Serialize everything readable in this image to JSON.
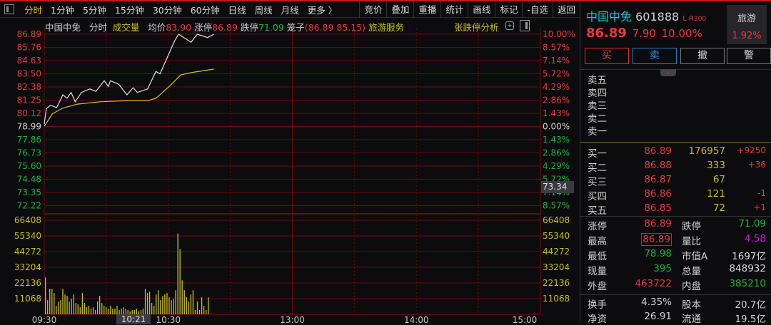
{
  "toolbar": {
    "periods": [
      "分时",
      "1分钟",
      "5分钟",
      "15分钟",
      "30分钟",
      "60分钟",
      "日线",
      "周线",
      "月线",
      "更多 〉"
    ],
    "active": "分时",
    "actions": [
      "竞价",
      "叠加",
      "重播",
      "统计",
      "画线",
      "标记",
      "-自选",
      "返回"
    ]
  },
  "header": {
    "name": "中国中免",
    "mode": "分时",
    "indicator": "成交量",
    "avg_label": "均价",
    "avg": "83.90",
    "up_limit_label": "涨停",
    "up_limit": "86.89",
    "down_limit_label": "跌停",
    "down_limit": "71.09",
    "cage_label": "笼子",
    "cage": "(86.89 85.15)",
    "sector": "旅游服务",
    "analysis": "张跌停分析"
  },
  "cursor": {
    "price": "73.34",
    "time": "10:21"
  },
  "chart_data": {
    "type": "line",
    "price_ticks": [
      "86.89",
      "85.76",
      "84.63",
      "83.50",
      "82.38",
      "81.25",
      "80.12",
      "78.99",
      "77.86",
      "76.73",
      "75.60",
      "74.48",
      "73.35",
      "72.22"
    ],
    "pct_ticks": [
      "10.00%",
      "8.57%",
      "7.14%",
      "5.72%",
      "4.29%",
      "2.86%",
      "1.43%",
      "0.00%",
      "1.43%",
      "2.86%",
      "4.29%",
      "5.72%",
      "7.14%",
      "8.57%"
    ],
    "volume_ticks": [
      "66408",
      "55340",
      "44272",
      "33204",
      "22136",
      "11068"
    ],
    "time_ticks": [
      "09:30",
      "10:30",
      "13:00",
      "14:00",
      "15:00"
    ],
    "ylim": [
      72.22,
      86.89
    ],
    "volume_max": 66408,
    "price_series": [
      [
        "09:30",
        79.2
      ],
      [
        "09:31",
        80.5
      ],
      [
        "09:33",
        80.8
      ],
      [
        "09:36",
        80.6
      ],
      [
        "09:39",
        81.7
      ],
      [
        "09:41",
        81.4
      ],
      [
        "09:43",
        81.9
      ],
      [
        "09:45",
        81.1
      ],
      [
        "09:48",
        81.9
      ],
      [
        "09:52",
        82.2
      ],
      [
        "09:55",
        82.0
      ],
      [
        "09:59",
        82.9
      ],
      [
        "10:01",
        82.4
      ],
      [
        "10:02",
        82.9
      ],
      [
        "10:06",
        82.6
      ],
      [
        "10:10",
        81.7
      ],
      [
        "10:13",
        82.3
      ],
      [
        "10:15",
        81.9
      ],
      [
        "10:20",
        82.2
      ],
      [
        "10:24",
        83.7
      ],
      [
        "10:26",
        83.5
      ],
      [
        "10:30",
        85.1
      ],
      [
        "10:33",
        86.3
      ],
      [
        "10:35",
        86.89
      ],
      [
        "10:41",
        86.2
      ],
      [
        "10:44",
        86.89
      ],
      [
        "10:49",
        86.6
      ],
      [
        "10:52",
        86.89
      ]
    ],
    "avg_series": [
      [
        "09:30",
        79.0
      ],
      [
        "09:34",
        80.08
      ],
      [
        "09:39",
        80.57
      ],
      [
        "09:46",
        80.9
      ],
      [
        "09:57",
        81.1
      ],
      [
        "10:11",
        81.2
      ],
      [
        "10:20",
        81.2
      ],
      [
        "10:24",
        81.4
      ],
      [
        "10:31",
        82.5
      ],
      [
        "10:36",
        83.4
      ],
      [
        "10:41",
        83.6
      ],
      [
        "10:52",
        83.9
      ]
    ],
    "volume": [
      26000,
      10000,
      18000,
      18000,
      15000,
      6000,
      9000,
      10000,
      18000,
      14000,
      13000,
      9000,
      11000,
      14000,
      8000,
      7000,
      5000,
      15000,
      8000,
      5000,
      6000,
      4000,
      5000,
      3000,
      9000,
      13000,
      8000,
      6000,
      5000,
      4000,
      6000,
      4000,
      4000,
      6000,
      3000,
      4000,
      5000,
      4000,
      3000,
      2000,
      3000,
      3000,
      4000,
      2000,
      3000,
      4000,
      18000,
      15000,
      16000,
      8000,
      6000,
      14000,
      17000,
      10000,
      13000,
      14000,
      15000,
      12000,
      10000,
      11000,
      17000,
      57000,
      46000,
      24000,
      17000,
      12000,
      9000,
      14000,
      17000,
      3000,
      9000,
      3000,
      12000,
      6000,
      3000,
      12000
    ],
    "colors": {
      "price": "#e0e0e0",
      "avg": "#d8c21a",
      "volume": "#c8be1e",
      "grid": "#6a0a0a"
    }
  },
  "quote": {
    "name": "中国中免",
    "code": "601888",
    "flags": "L R",
    "index": "300",
    "price": "86.89",
    "change": "7.90",
    "pct": "10.00%",
    "sector": "旅游",
    "sector_pct": "1.92%",
    "buttons": [
      "买",
      "卖",
      "撤",
      "警"
    ],
    "asks": [
      "卖五",
      "卖四",
      "卖三",
      "卖二",
      "卖一"
    ],
    "bids": [
      {
        "label": "买一",
        "price": "86.89",
        "vol": "176957",
        "chg": "+9250"
      },
      {
        "label": "买二",
        "price": "86.88",
        "vol": "333",
        "chg": "+36"
      },
      {
        "label": "买三",
        "price": "86.87",
        "vol": "67",
        "chg": ""
      },
      {
        "label": "买四",
        "price": "86.86",
        "vol": "121",
        "chg": "-1"
      },
      {
        "label": "买五",
        "price": "86.85",
        "vol": "72",
        "chg": "+1"
      }
    ],
    "stats": [
      [
        {
          "l": "涨停",
          "v": "86.89",
          "c": "red"
        },
        {
          "l": "跌停",
          "v": "71.09",
          "c": "green"
        }
      ],
      [
        {
          "l": "最高",
          "v": "86.89",
          "c": "red"
        },
        {
          "l": "量比",
          "v": "4.58",
          "c": "purple"
        }
      ],
      [
        {
          "l": "最低",
          "v": "78.98",
          "c": "green"
        },
        {
          "l": "市值A",
          "v": "1697亿",
          "c": "white"
        }
      ],
      [
        {
          "l": "现量",
          "v": "395",
          "c": "green"
        },
        {
          "l": "总量",
          "v": "848932",
          "c": "white"
        }
      ],
      [
        {
          "l": "外盘",
          "v": "463722",
          "c": "red"
        },
        {
          "l": "内盘",
          "v": "385210",
          "c": "green"
        }
      ]
    ],
    "stats2": [
      [
        {
          "l": "换手",
          "v": "4.35%"
        },
        {
          "l": "股本",
          "v": "20.7亿"
        }
      ],
      [
        {
          "l": "净资",
          "v": "26.91"
        },
        {
          "l": "流通",
          "v": "19.5亿"
        }
      ]
    ]
  }
}
